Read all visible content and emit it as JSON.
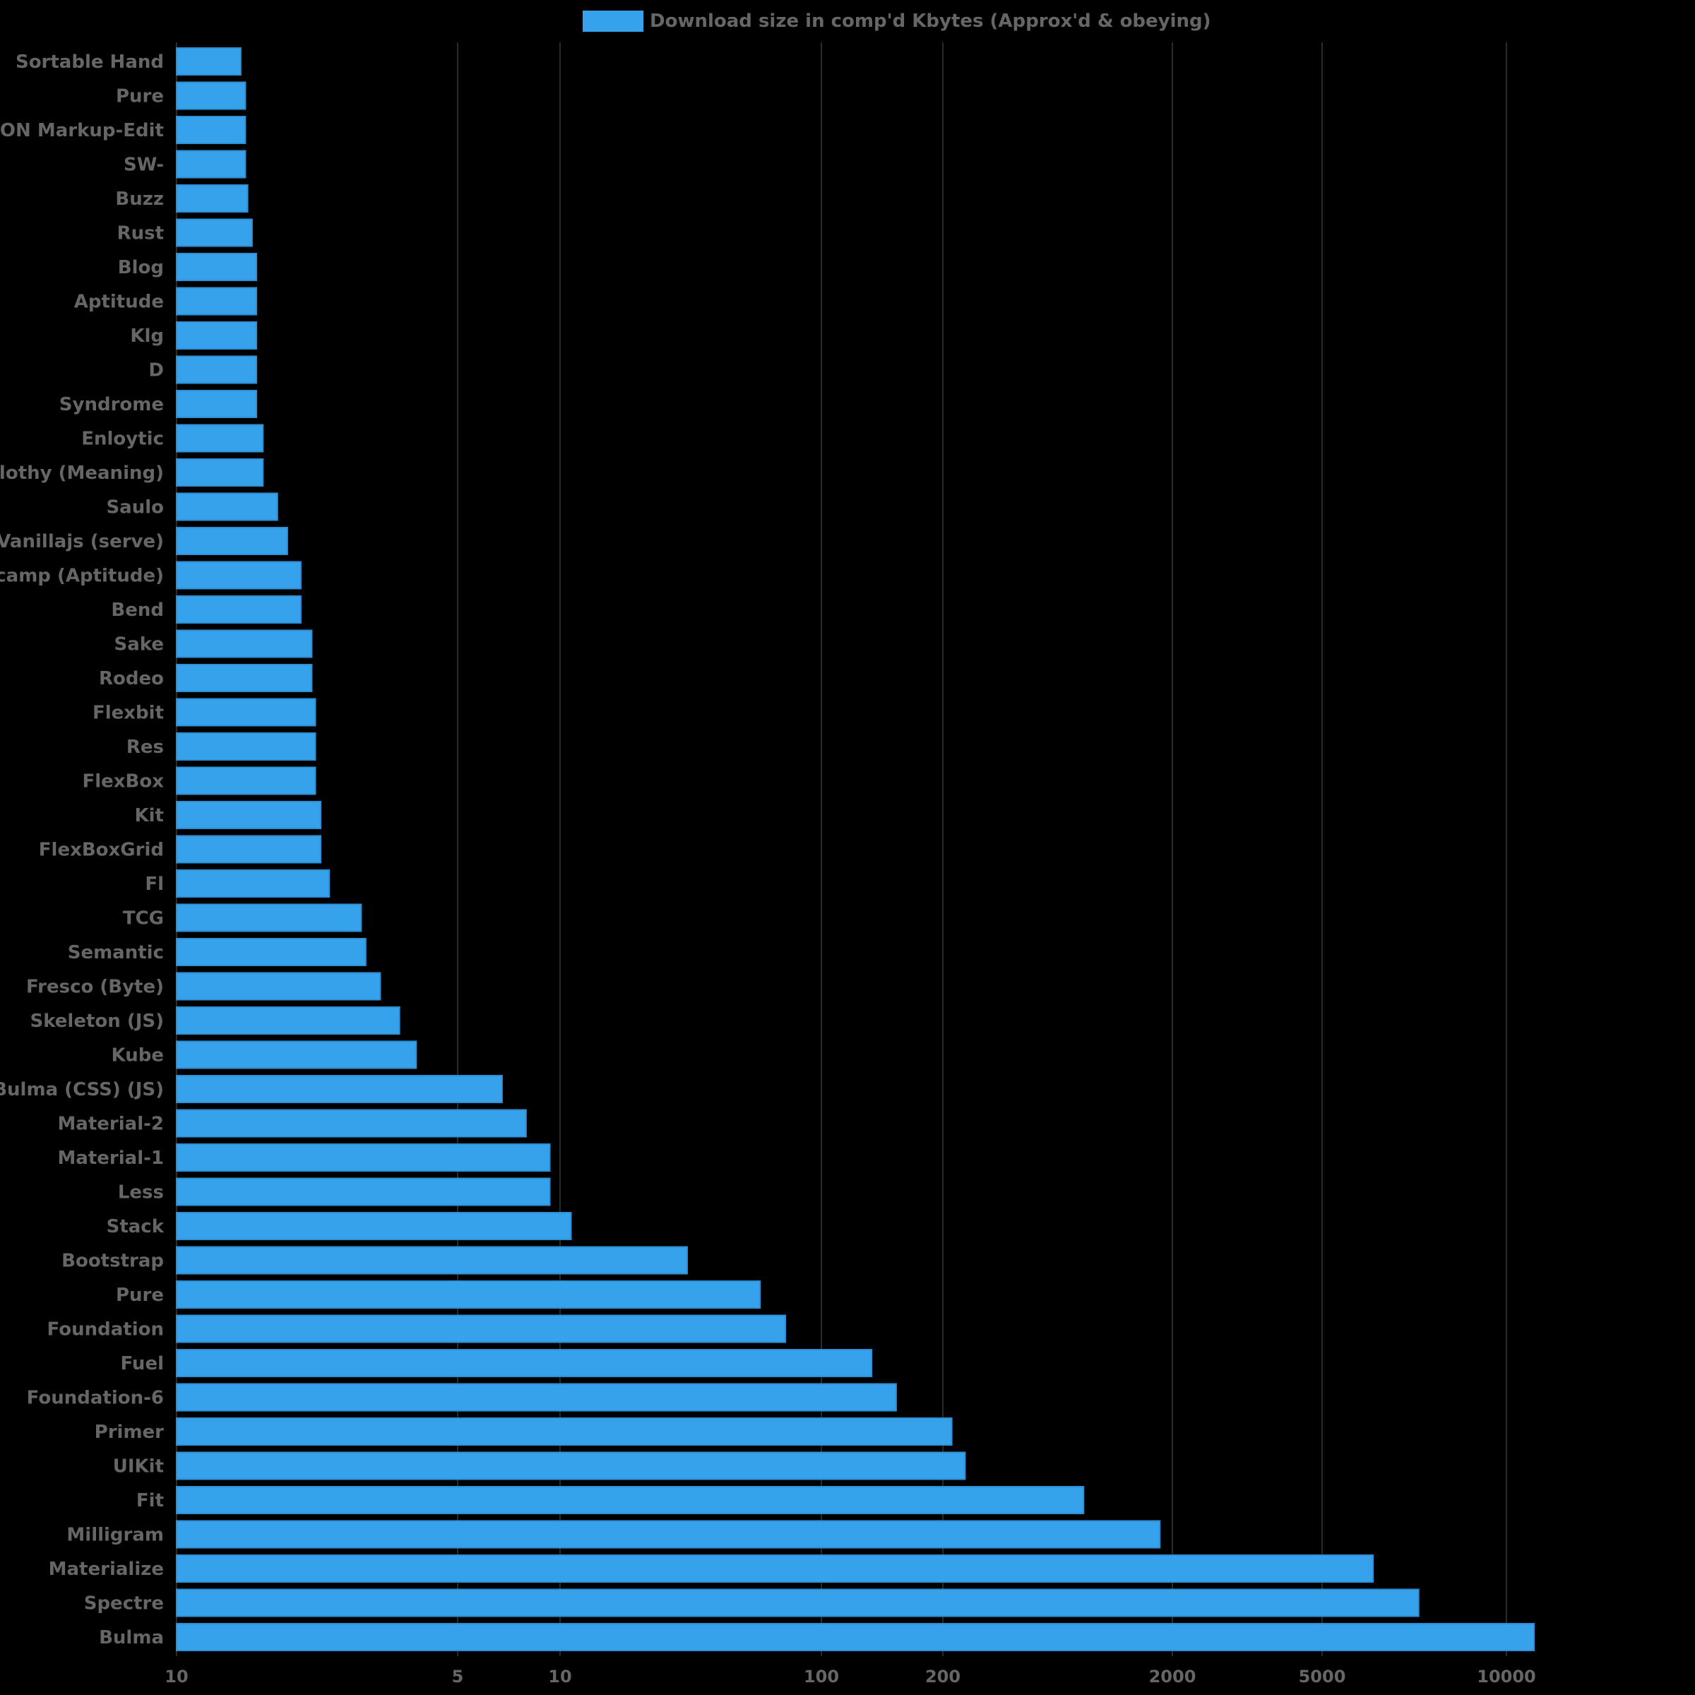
{
  "chart_data": {
    "type": "bar",
    "orientation": "horizontal",
    "x_scale": "log",
    "grid": true,
    "legend_position": "top-center",
    "colors": {
      "bar": "#36A2EB",
      "bar_border": "#2F8FD4",
      "background": "#000000",
      "text": "#666666",
      "grid": "#2a2a2a"
    },
    "series": [
      {
        "name": "Download size in comp'd Kbytes (Approx'd & obeying)",
        "values": [
          1.25,
          1.27,
          1.27,
          1.27,
          1.28,
          1.3,
          1.32,
          1.32,
          1.32,
          1.32,
          1.32,
          1.35,
          1.35,
          1.42,
          1.47,
          1.54,
          1.54,
          1.6,
          1.6,
          1.62,
          1.62,
          1.62,
          1.65,
          1.65,
          1.7,
          1.9,
          1.93,
          2.03,
          2.17,
          2.3,
          3.1,
          3.37,
          3.66,
          3.66,
          3.94,
          5.9,
          7.6,
          8.3,
          11.2,
          12.2,
          14.8,
          15.5,
          23.4,
          30.5,
          64.0,
          75.0,
          112.0
        ]
      }
    ],
    "categories": [
      "Sortable Hand",
      "Pure",
      "JSON Markup-Edit",
      "SW-",
      "Buzz",
      "Rust",
      "Blog",
      "Aptitude",
      "Klg",
      "D",
      "Syndrome",
      "Enloytic",
      "Slothy (Meaning)",
      "Saulo",
      "Vanillajs (serve)",
      "Bootcamp (Aptitude)",
      "Bend",
      "Sake",
      "Rodeo",
      "Flexbit",
      "Res",
      "FlexBox",
      "Kit",
      "FlexBoxGrid",
      "Fl",
      "TCG",
      "Semantic",
      "Fresco (Byte)",
      "Skeleton (JS)",
      "Kube",
      "Bulma (CSS) (JS)",
      "Material-2",
      "Material-1",
      "Less",
      "Stack",
      "Bootstrap",
      "Pure",
      "Foundation",
      "Fuel",
      "Foundation-6",
      "Primer",
      "UIKit",
      "Fit",
      "Milligram",
      "Materialize",
      "Spectre",
      "Bulma"
    ],
    "x_ticks": [
      "10",
      "5",
      "10",
      "100",
      "200",
      "2000",
      "5000",
      "10000"
    ]
  }
}
